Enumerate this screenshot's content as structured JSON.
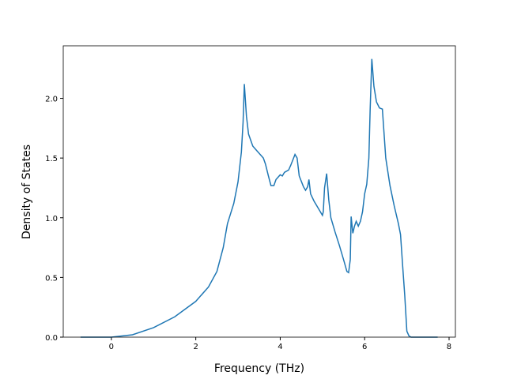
{
  "chart_data": {
    "type": "line",
    "x_label": "Frequency (THz)",
    "y_label": "Density of States",
    "x": [
      -0.73,
      0,
      0.5,
      1.0,
      1.5,
      2.0,
      2.3,
      2.5,
      2.65,
      2.75,
      2.9,
      3.0,
      3.08,
      3.12,
      3.15,
      3.2,
      3.25,
      3.35,
      3.45,
      3.6,
      3.65,
      3.72,
      3.78,
      3.85,
      3.9,
      4.0,
      4.05,
      4.1,
      4.2,
      4.25,
      4.35,
      4.4,
      4.45,
      4.55,
      4.6,
      4.65,
      4.68,
      4.72,
      4.8,
      4.9,
      5.0,
      5.02,
      5.05,
      5.1,
      5.15,
      5.2,
      5.3,
      5.4,
      5.5,
      5.58,
      5.62,
      5.66,
      5.68,
      5.72,
      5.76,
      5.8,
      5.85,
      5.9,
      5.95,
      6.0,
      6.05,
      6.1,
      6.13,
      6.17,
      6.22,
      6.28,
      6.35,
      6.42,
      6.5,
      6.6,
      6.7,
      6.8,
      6.85,
      6.9,
      6.95,
      7.0,
      7.05,
      7.1,
      7.73
    ],
    "series": [
      {
        "color": "#1f77b4",
        "values": [
          0,
          0,
          0.02,
          0.08,
          0.17,
          0.3,
          0.42,
          0.55,
          0.75,
          0.95,
          1.12,
          1.3,
          1.55,
          1.8,
          2.12,
          1.85,
          1.7,
          1.6,
          1.56,
          1.5,
          1.45,
          1.35,
          1.27,
          1.27,
          1.32,
          1.36,
          1.35,
          1.38,
          1.4,
          1.44,
          1.53,
          1.5,
          1.35,
          1.26,
          1.23,
          1.26,
          1.32,
          1.2,
          1.14,
          1.08,
          1.02,
          1.05,
          1.25,
          1.37,
          1.15,
          1.0,
          0.88,
          0.77,
          0.65,
          0.55,
          0.54,
          0.65,
          1.01,
          0.87,
          0.93,
          0.97,
          0.93,
          0.97,
          1.05,
          1.2,
          1.28,
          1.5,
          1.9,
          2.33,
          2.1,
          1.97,
          1.92,
          1.91,
          1.5,
          1.27,
          1.1,
          0.95,
          0.86,
          0.6,
          0.35,
          0.05,
          0.01,
          0,
          0
        ]
      }
    ],
    "xlim": [
      -1.14,
      8.15
    ],
    "ylim": [
      0,
      2.44
    ],
    "xticks": [
      0,
      2,
      4,
      6,
      8
    ],
    "yticks": [
      {
        "value": 0,
        "label": "0.0"
      },
      0.5,
      {
        "value": 1,
        "label": "1.0"
      },
      1.5,
      {
        "value": 2,
        "label": "2.0"
      }
    ]
  }
}
